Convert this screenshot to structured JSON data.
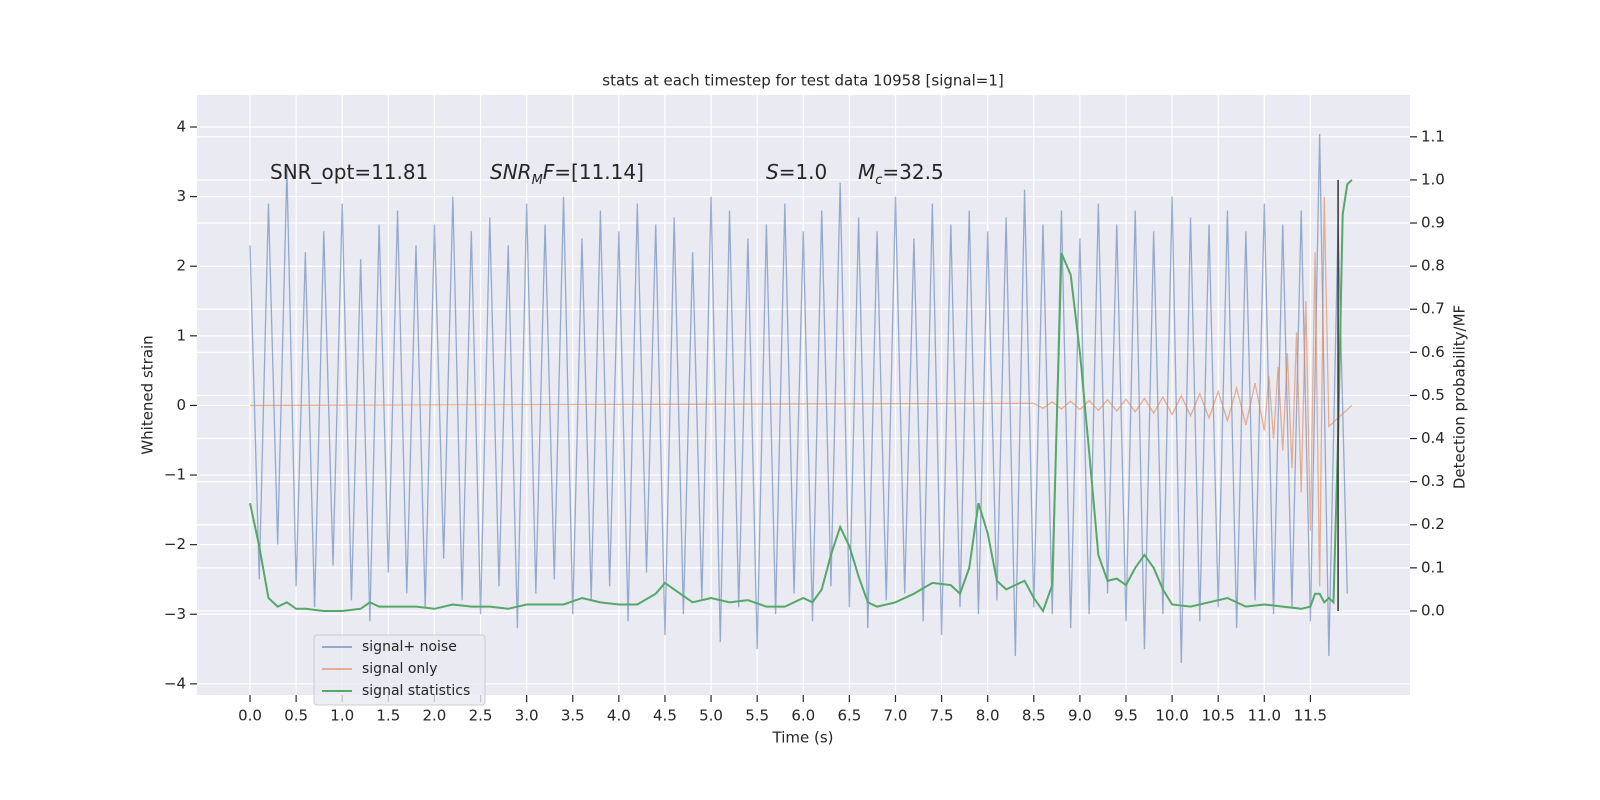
{
  "chart_data": {
    "type": "line",
    "title": "stats at each timestep for test data 10958 [signal=1]",
    "xlabel": "Time (s)",
    "ylabel": "Whitened strain",
    "y2label": "Detection probability/MF",
    "xlim": [
      -0.575,
      12.58
    ],
    "ylim": [
      -4.16,
      4.46
    ],
    "y2lim": [
      -0.195,
      1.197
    ],
    "xticks": [
      {
        "value": 0,
        "label": "0.0"
      },
      0.5,
      {
        "value": 1,
        "label": "1.0"
      },
      1.5,
      {
        "value": 2,
        "label": "2.0"
      },
      2.5,
      {
        "value": 3,
        "label": "3.0"
      },
      3.5,
      {
        "value": 4,
        "label": "4.0"
      },
      4.5,
      {
        "value": 5,
        "label": "5.0"
      },
      5.5,
      {
        "value": 6,
        "label": "6.0"
      },
      6.5,
      {
        "value": 7,
        "label": "7.0"
      },
      7.5,
      {
        "value": 8,
        "label": "8.0"
      },
      8.5,
      {
        "value": 9,
        "label": "9.0"
      },
      9.5,
      {
        "value": 10,
        "label": "10.0"
      },
      10.5,
      {
        "value": 11,
        "label": "11.0"
      },
      11.5
    ],
    "yticks": [
      {
        "value": -4,
        "label": "−4"
      },
      {
        "value": -3,
        "label": "−3"
      },
      {
        "value": -2,
        "label": "−2"
      },
      {
        "value": -1,
        "label": "−1"
      },
      0,
      1,
      2,
      3,
      4
    ],
    "y2ticks": [
      {
        "value": 0,
        "label": "0.0"
      },
      0.1,
      0.2,
      0.3,
      0.4,
      0.5,
      0.6,
      0.7,
      0.8,
      0.9,
      {
        "value": 1,
        "label": "1.0"
      },
      1.1
    ],
    "grid": true,
    "legend": "lower left",
    "annotations": [
      [
        {
          "text": "SNR_opt=11.81"
        }
      ],
      [
        {
          "text": "SNR",
          "italic": true
        },
        {
          "text": "M",
          "italic": true,
          "sub": true
        },
        {
          "text": "F",
          "italic": true
        },
        {
          "text": "=[11.14]"
        }
      ],
      [
        {
          "text": "S",
          "italic": true
        },
        {
          "text": "=1.0"
        }
      ],
      [
        {
          "text": "M",
          "italic": true
        },
        {
          "text": "c",
          "italic": true,
          "sub": true
        },
        {
          "text": "=32.5"
        }
      ]
    ],
    "vlines": [
      {
        "x": 11.8,
        "ymin": 0,
        "ymax": 1,
        "axis": "y2",
        "color": "#333333"
      }
    ],
    "series": [
      {
        "name": "signal+ noise",
        "color": "#4c72b0",
        "opacity": 0.55,
        "x": [
          0.0,
          0.1,
          0.2,
          0.3,
          0.4,
          0.5,
          0.6,
          0.7,
          0.8,
          0.9,
          1.0,
          1.1,
          1.2,
          1.3,
          1.4,
          1.5,
          1.6,
          1.7,
          1.8,
          1.9,
          2.0,
          2.1,
          2.2,
          2.3,
          2.4,
          2.5,
          2.6,
          2.7,
          2.8,
          2.9,
          3.0,
          3.1,
          3.2,
          3.3,
          3.4,
          3.5,
          3.6,
          3.7,
          3.8,
          3.9,
          4.0,
          4.1,
          4.2,
          4.3,
          4.4,
          4.5,
          4.6,
          4.7,
          4.8,
          4.9,
          5.0,
          5.1,
          5.2,
          5.3,
          5.4,
          5.5,
          5.6,
          5.7,
          5.8,
          5.9,
          6.0,
          6.1,
          6.2,
          6.3,
          6.4,
          6.5,
          6.6,
          6.7,
          6.8,
          6.9,
          7.0,
          7.1,
          7.2,
          7.3,
          7.4,
          7.5,
          7.6,
          7.7,
          7.8,
          7.9,
          8.0,
          8.1,
          8.2,
          8.3,
          8.4,
          8.5,
          8.6,
          8.7,
          8.8,
          8.9,
          9.0,
          9.1,
          9.2,
          9.3,
          9.4,
          9.5,
          9.6,
          9.7,
          9.8,
          9.9,
          10.0,
          10.1,
          10.2,
          10.3,
          10.4,
          10.5,
          10.6,
          10.7,
          10.8,
          10.9,
          11.0,
          11.1,
          11.2,
          11.3,
          11.4,
          11.5,
          11.6,
          11.7,
          11.8,
          11.9
        ],
        "values": [
          2.3,
          -2.5,
          2.9,
          -2.0,
          3.4,
          -2.6,
          2.2,
          -2.9,
          2.5,
          -2.3,
          2.9,
          -2.8,
          2.1,
          -3.1,
          2.6,
          -2.4,
          2.8,
          -2.7,
          2.3,
          -2.9,
          2.6,
          -2.2,
          3.0,
          -2.8,
          2.5,
          -3.0,
          2.7,
          -2.6,
          2.3,
          -3.2,
          2.9,
          -2.7,
          2.6,
          -2.5,
          3.0,
          -3.0,
          2.4,
          -2.8,
          2.8,
          -2.6,
          2.5,
          -3.1,
          2.9,
          -2.4,
          2.6,
          -3.3,
          2.7,
          -3.0,
          2.2,
          -2.8,
          3.0,
          -3.4,
          2.8,
          -2.9,
          2.4,
          -3.5,
          2.6,
          -3.0,
          2.9,
          -2.7,
          2.5,
          -3.1,
          2.8,
          -2.6,
          3.2,
          -2.9,
          2.7,
          -3.2,
          2.5,
          -2.8,
          3.0,
          -2.7,
          2.4,
          -3.1,
          2.9,
          -3.3,
          2.6,
          -2.9,
          2.8,
          -3.0,
          2.5,
          -2.8,
          2.7,
          -3.6,
          3.1,
          -2.9,
          2.6,
          -3.0,
          2.8,
          -3.2,
          2.4,
          -3.0,
          2.9,
          -2.7,
          2.6,
          -3.1,
          2.8,
          -3.5,
          2.5,
          -3.0,
          3.0,
          -3.7,
          2.7,
          -3.1,
          2.6,
          -2.9,
          2.8,
          -3.2,
          2.5,
          -2.8,
          2.9,
          -3.0,
          2.6,
          -2.9,
          2.8,
          -3.1,
          3.9,
          -3.6,
          2.6,
          -2.7
        ]
      },
      {
        "name": "signal only",
        "color": "#dd8452",
        "opacity": 0.6,
        "x": [
          0.0,
          8.5,
          8.6,
          8.7,
          8.8,
          8.9,
          9.0,
          9.1,
          9.2,
          9.3,
          9.4,
          9.5,
          9.6,
          9.7,
          9.8,
          9.9,
          10.0,
          10.1,
          10.2,
          10.3,
          10.4,
          10.5,
          10.6,
          10.7,
          10.8,
          10.9,
          11.0,
          11.05,
          11.1,
          11.15,
          11.2,
          11.25,
          11.3,
          11.35,
          11.4,
          11.45,
          11.5,
          11.55,
          11.6,
          11.65,
          11.7,
          11.95
        ],
        "values": [
          0.0,
          0.03,
          -0.04,
          0.05,
          -0.05,
          0.06,
          -0.06,
          0.07,
          -0.07,
          0.08,
          -0.08,
          0.09,
          -0.09,
          0.1,
          -0.11,
          0.12,
          -0.13,
          0.14,
          -0.15,
          0.17,
          -0.18,
          0.2,
          -0.22,
          0.25,
          -0.28,
          0.32,
          -0.36,
          0.42,
          -0.48,
          0.55,
          -0.65,
          0.75,
          -0.9,
          1.05,
          -1.25,
          1.5,
          -1.8,
          2.2,
          -2.6,
          3.0,
          -0.3,
          0.0
        ]
      },
      {
        "name": "signal statistics",
        "color": "#55a868",
        "opacity": 1,
        "axis": "y2",
        "x": [
          0.0,
          0.1,
          0.2,
          0.3,
          0.4,
          0.5,
          0.6,
          0.8,
          1.0,
          1.2,
          1.3,
          1.4,
          1.6,
          1.8,
          2.0,
          2.2,
          2.4,
          2.6,
          2.8,
          3.0,
          3.2,
          3.4,
          3.6,
          3.8,
          4.0,
          4.2,
          4.4,
          4.5,
          4.6,
          4.8,
          5.0,
          5.2,
          5.4,
          5.6,
          5.8,
          6.0,
          6.1,
          6.2,
          6.3,
          6.4,
          6.5,
          6.6,
          6.7,
          6.8,
          7.0,
          7.2,
          7.4,
          7.6,
          7.7,
          7.8,
          7.9,
          8.0,
          8.1,
          8.2,
          8.4,
          8.5,
          8.6,
          8.7,
          8.8,
          8.9,
          9.0,
          9.1,
          9.2,
          9.3,
          9.4,
          9.5,
          9.6,
          9.7,
          9.8,
          9.9,
          10.0,
          10.2,
          10.4,
          10.6,
          10.8,
          11.0,
          11.2,
          11.4,
          11.5,
          11.55,
          11.6,
          11.65,
          11.7,
          11.75,
          11.8,
          11.85,
          11.9,
          11.95
        ],
        "values": [
          0.25,
          0.15,
          0.03,
          0.01,
          0.02,
          0.005,
          0.005,
          0.0,
          0.0,
          0.005,
          0.02,
          0.01,
          0.01,
          0.01,
          0.005,
          0.015,
          0.01,
          0.01,
          0.005,
          0.015,
          0.015,
          0.015,
          0.03,
          0.02,
          0.015,
          0.015,
          0.04,
          0.065,
          0.05,
          0.02,
          0.03,
          0.02,
          0.025,
          0.01,
          0.01,
          0.03,
          0.02,
          0.05,
          0.13,
          0.195,
          0.15,
          0.08,
          0.02,
          0.01,
          0.02,
          0.04,
          0.065,
          0.06,
          0.04,
          0.1,
          0.25,
          0.18,
          0.07,
          0.05,
          0.07,
          0.03,
          0.0,
          0.06,
          0.83,
          0.78,
          0.6,
          0.37,
          0.13,
          0.07,
          0.075,
          0.06,
          0.1,
          0.13,
          0.1,
          0.05,
          0.015,
          0.01,
          0.02,
          0.03,
          0.01,
          0.015,
          0.01,
          0.005,
          0.01,
          0.04,
          0.04,
          0.02,
          0.03,
          0.02,
          0.4,
          0.92,
          0.99,
          1.0
        ]
      }
    ]
  }
}
